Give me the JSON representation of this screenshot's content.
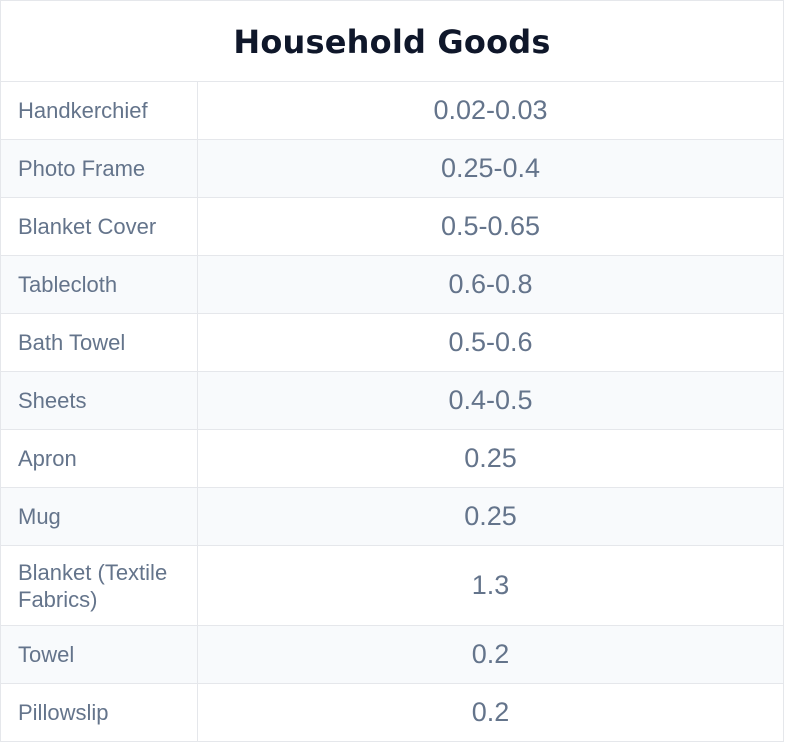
{
  "title": "Household Goods",
  "rows": [
    {
      "item": "Handkerchief",
      "value": "0.02-0.03"
    },
    {
      "item": "Photo Frame",
      "value": "0.25-0.4"
    },
    {
      "item": "Blanket Cover",
      "value": "0.5-0.65"
    },
    {
      "item": "Tablecloth",
      "value": "0.6-0.8"
    },
    {
      "item": "Bath Towel",
      "value": "0.5-0.6"
    },
    {
      "item": "Sheets",
      "value": "0.4-0.5"
    },
    {
      "item": "Apron",
      "value": "0.25"
    },
    {
      "item": "Mug",
      "value": "0.25"
    },
    {
      "item": "Blanket (Textile Fabrics)",
      "value": "1.3"
    },
    {
      "item": "Towel",
      "value": "0.2"
    },
    {
      "item": "Pillowslip",
      "value": "0.2"
    }
  ]
}
